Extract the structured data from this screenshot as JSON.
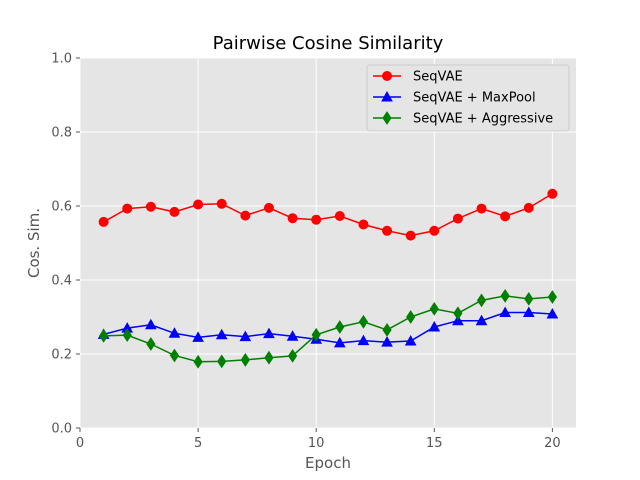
{
  "chart_data": {
    "type": "line",
    "title": "Pairwise Cosine Similarity",
    "xlabel": "Epoch",
    "ylabel": "Cos. Sim.",
    "xlim": [
      0,
      21
    ],
    "ylim": [
      0.0,
      1.0
    ],
    "xticks": [
      0,
      5,
      10,
      15,
      20
    ],
    "xtick_labels": [
      "0",
      "5",
      "10",
      "15",
      "20"
    ],
    "yticks": [
      0.0,
      0.2,
      0.4,
      0.6,
      0.8,
      1.0
    ],
    "ytick_labels": [
      "0.0",
      "0.2",
      "0.4",
      "0.6",
      "0.8",
      "1.0"
    ],
    "grid": true,
    "legend_position": "top-right",
    "x": [
      1,
      2,
      3,
      4,
      5,
      6,
      7,
      8,
      9,
      10,
      11,
      12,
      13,
      14,
      15,
      16,
      17,
      18,
      19,
      20
    ],
    "series": [
      {
        "name": "SeqVAE",
        "color": "#ff0000",
        "marker": "circle",
        "values": [
          0.557,
          0.593,
          0.598,
          0.584,
          0.604,
          0.606,
          0.574,
          0.595,
          0.567,
          0.563,
          0.573,
          0.55,
          0.533,
          0.52,
          0.533,
          0.566,
          0.593,
          0.572,
          0.595,
          0.633
        ]
      },
      {
        "name": "SeqVAE + MaxPool",
        "color": "#0000ff",
        "marker": "triangle",
        "values": [
          0.253,
          0.27,
          0.279,
          0.256,
          0.245,
          0.252,
          0.247,
          0.255,
          0.248,
          0.24,
          0.23,
          0.236,
          0.232,
          0.235,
          0.273,
          0.29,
          0.29,
          0.312,
          0.312,
          0.308
        ]
      },
      {
        "name": "SeqVAE + Aggressive",
        "color": "#008000",
        "marker": "diamond",
        "values": [
          0.249,
          0.251,
          0.227,
          0.196,
          0.179,
          0.18,
          0.184,
          0.19,
          0.195,
          0.252,
          0.273,
          0.287,
          0.265,
          0.3,
          0.322,
          0.31,
          0.345,
          0.357,
          0.349,
          0.354
        ]
      }
    ]
  }
}
